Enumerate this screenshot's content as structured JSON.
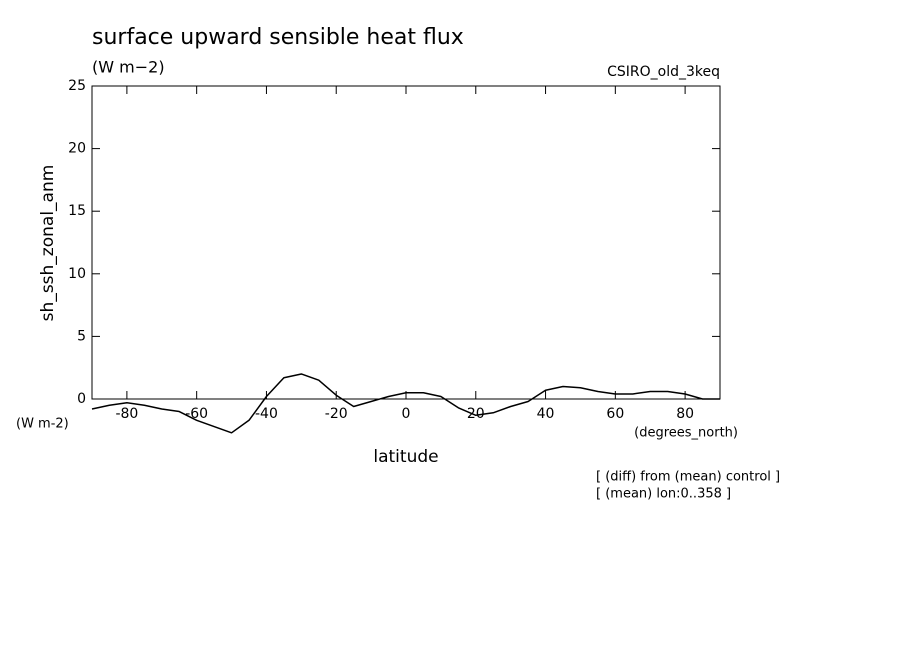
{
  "chart_data": {
    "type": "line",
    "title": "surface upward sensible heat flux",
    "units": "(W m−2)",
    "subtitle": "CSIRO_old_3keq",
    "y_label": "sh_ssh_zonal_anm",
    "y_units": "(W m-2)",
    "x_units": "(degrees_north)",
    "x_label": "latitude",
    "notes": [
      "[ (diff) from (mean) control ]",
      "[ (mean) lon:0..358 ]"
    ],
    "x": [
      -90,
      -85,
      -80,
      -75,
      -70,
      -65,
      -60,
      -55,
      -50,
      -45,
      -40,
      -35,
      -30,
      -25,
      -20,
      -15,
      -10,
      -5,
      0,
      5,
      10,
      15,
      20,
      25,
      30,
      35,
      40,
      45,
      50,
      55,
      60,
      65,
      70,
      75,
      80,
      85,
      90
    ],
    "series": [
      {
        "name": "sh_ssh_zonal_anm",
        "color": "#000000",
        "values": [
          -0.8,
          -0.5,
          -0.3,
          -0.5,
          -0.8,
          -1.0,
          -1.7,
          -2.2,
          -2.7,
          -1.7,
          0.2,
          1.7,
          2.0,
          1.5,
          0.3,
          -0.6,
          -0.2,
          0.2,
          0.5,
          0.5,
          0.2,
          -0.7,
          -1.3,
          -1.1,
          -0.6,
          -0.2,
          0.7,
          1.0,
          0.9,
          0.6,
          0.4,
          0.4,
          0.6,
          0.6,
          0.4,
          0.0,
          0.0
        ]
      }
    ],
    "xlim": [
      -90,
      90
    ],
    "xticks": [
      -80,
      -60,
      -40,
      -20,
      0,
      20,
      40,
      60,
      80
    ],
    "ylim": [
      0,
      25
    ],
    "yticks": [
      0,
      5,
      10,
      15,
      20,
      25
    ],
    "grid": false
  }
}
